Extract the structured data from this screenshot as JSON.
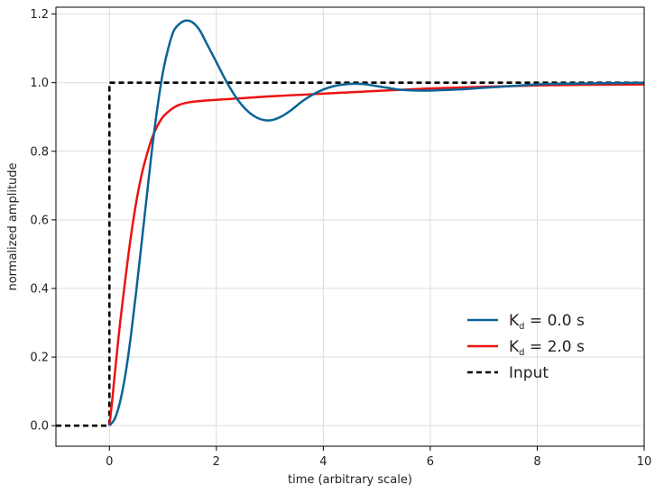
{
  "chart_data": {
    "type": "line",
    "title": "",
    "xlabel": "time (arbitrary scale)",
    "ylabel": "normalized amplitude",
    "xlim": [
      -1,
      10
    ],
    "ylim": [
      -0.06,
      1.22
    ],
    "xticks": [
      0,
      2,
      4,
      6,
      8,
      10
    ],
    "yticks": [
      0.0,
      0.2,
      0.4,
      0.6,
      0.8,
      1.0,
      1.2
    ],
    "xtick_labels": [
      "0",
      "2",
      "4",
      "6",
      "8",
      "10"
    ],
    "ytick_labels": [
      "0.0",
      "0.2",
      "0.4",
      "0.6",
      "0.8",
      "1.0",
      "1.2"
    ],
    "grid": true,
    "legend_position": "lower-right",
    "series": [
      {
        "name": "K_d = 0.0 s",
        "label_main": "K",
        "label_sub": "d",
        "label_rest": " = 0.0 s",
        "color": "#0a6396",
        "style": "solid",
        "x": [
          0,
          0.1,
          0.2,
          0.3,
          0.4,
          0.5,
          0.6,
          0.7,
          0.8,
          0.9,
          1.0,
          1.1,
          1.2,
          1.3,
          1.4,
          1.5,
          1.6,
          1.7,
          1.8,
          1.9,
          2.0,
          2.2,
          2.4,
          2.6,
          2.8,
          3.0,
          3.2,
          3.4,
          3.6,
          3.8,
          4.0,
          4.2,
          4.4,
          4.6,
          4.8,
          5.0,
          5.2,
          5.4,
          5.6,
          5.8,
          6.0,
          6.5,
          7.0,
          7.5,
          8.0,
          8.5,
          9.0,
          9.5,
          10.0
        ],
        "y": [
          0.0,
          0.02,
          0.07,
          0.15,
          0.26,
          0.39,
          0.53,
          0.67,
          0.81,
          0.93,
          1.03,
          1.1,
          1.15,
          1.17,
          1.18,
          1.18,
          1.17,
          1.15,
          1.12,
          1.09,
          1.06,
          1.0,
          0.95,
          0.915,
          0.895,
          0.89,
          0.9,
          0.92,
          0.945,
          0.965,
          0.98,
          0.99,
          0.995,
          0.997,
          0.995,
          0.99,
          0.985,
          0.98,
          0.978,
          0.977,
          0.977,
          0.98,
          0.985,
          0.99,
          0.995,
          0.997,
          0.998,
          0.999,
          1.0
        ]
      },
      {
        "name": "K_d = 2.0 s",
        "label_main": "K",
        "label_sub": "d",
        "label_rest": " = 2.0 s",
        "color": "#ee1111",
        "style": "solid",
        "x": [
          0,
          0.05,
          0.1,
          0.2,
          0.3,
          0.4,
          0.5,
          0.6,
          0.7,
          0.8,
          0.9,
          1.0,
          1.1,
          1.2,
          1.3,
          1.4,
          1.5,
          1.6,
          1.8,
          2.0,
          2.5,
          3.0,
          4.0,
          5.0,
          6.0,
          7.0,
          8.0,
          9.0,
          10.0
        ],
        "y": [
          0.0,
          0.07,
          0.15,
          0.3,
          0.43,
          0.55,
          0.65,
          0.73,
          0.79,
          0.84,
          0.875,
          0.9,
          0.915,
          0.927,
          0.935,
          0.94,
          0.943,
          0.945,
          0.948,
          0.95,
          0.955,
          0.96,
          0.968,
          0.976,
          0.983,
          0.988,
          0.992,
          0.994,
          0.995
        ]
      },
      {
        "name": "Input",
        "label_main": "Input",
        "label_sub": "",
        "label_rest": "",
        "color": "#000000",
        "style": "dashed",
        "x": [
          -1,
          0,
          0,
          10
        ],
        "y": [
          0,
          0,
          1,
          1
        ]
      }
    ]
  },
  "colors": {
    "grid": "#dddddd",
    "axis": "#000000"
  }
}
